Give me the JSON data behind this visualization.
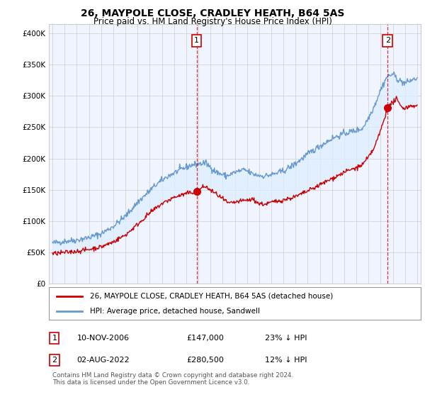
{
  "title": "26, MAYPOLE CLOSE, CRADLEY HEATH, B64 5AS",
  "subtitle": "Price paid vs. HM Land Registry's House Price Index (HPI)",
  "yticks": [
    0,
    50000,
    100000,
    150000,
    200000,
    250000,
    300000,
    350000,
    400000
  ],
  "xlim_start": 1994.7,
  "xlim_end": 2025.3,
  "ylim": [
    0,
    415000
  ],
  "sale1_date_x": 2006.86,
  "sale1_price": 147000,
  "sale2_date_x": 2022.58,
  "sale2_price": 280500,
  "legend_label_red": "26, MAYPOLE CLOSE, CRADLEY HEATH, B64 5AS (detached house)",
  "legend_label_blue": "HPI: Average price, detached house, Sandwell",
  "annotation1_date": "10-NOV-2006",
  "annotation1_price": "£147,000",
  "annotation1_hpi": "23% ↓ HPI",
  "annotation2_date": "02-AUG-2022",
  "annotation2_price": "£280,500",
  "annotation2_hpi": "12% ↓ HPI",
  "footnote": "Contains HM Land Registry data © Crown copyright and database right 2024.\nThis data is licensed under the Open Government Licence v3.0.",
  "red_color": "#cc0000",
  "blue_color": "#6699cc",
  "fill_color": "#ddeeff",
  "vline_color": "#cc0000",
  "grid_color": "#cccccc",
  "box_color": "#cc0000",
  "bg_color": "#f0f4ff"
}
